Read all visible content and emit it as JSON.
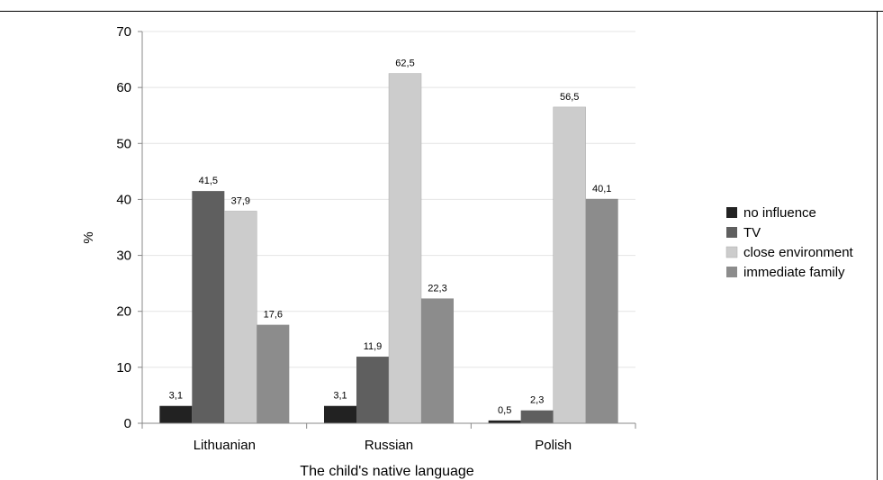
{
  "chart_data": {
    "type": "bar",
    "categories": [
      "Lithuanian",
      "Russian",
      "Polish"
    ],
    "series": [
      {
        "name": "no influence",
        "values": [
          3.1,
          3.1,
          0.5
        ],
        "labels": [
          "3,1",
          "3,1",
          "0,5"
        ],
        "color": "#222222"
      },
      {
        "name": "TV",
        "values": [
          41.5,
          11.9,
          2.3
        ],
        "labels": [
          "41,5",
          "11,9",
          "2,3"
        ],
        "color": "#5f5f5f"
      },
      {
        "name": "close environment",
        "values": [
          37.9,
          62.5,
          56.5
        ],
        "labels": [
          "37,9",
          "62,5",
          "56,5"
        ],
        "color": "#cccccc"
      },
      {
        "name": "immediate family",
        "values": [
          17.6,
          22.3,
          40.1
        ],
        "labels": [
          "17,6",
          "22,3",
          "40,1"
        ],
        "color": "#8c8c8c"
      }
    ],
    "xlabel": "The child's native language",
    "ylabel": "%",
    "ylim": [
      0,
      70
    ],
    "yticks": [
      "0",
      "10",
      "20",
      "30",
      "40",
      "50",
      "60",
      "70"
    ],
    "grid": true,
    "legend_position": "right"
  }
}
